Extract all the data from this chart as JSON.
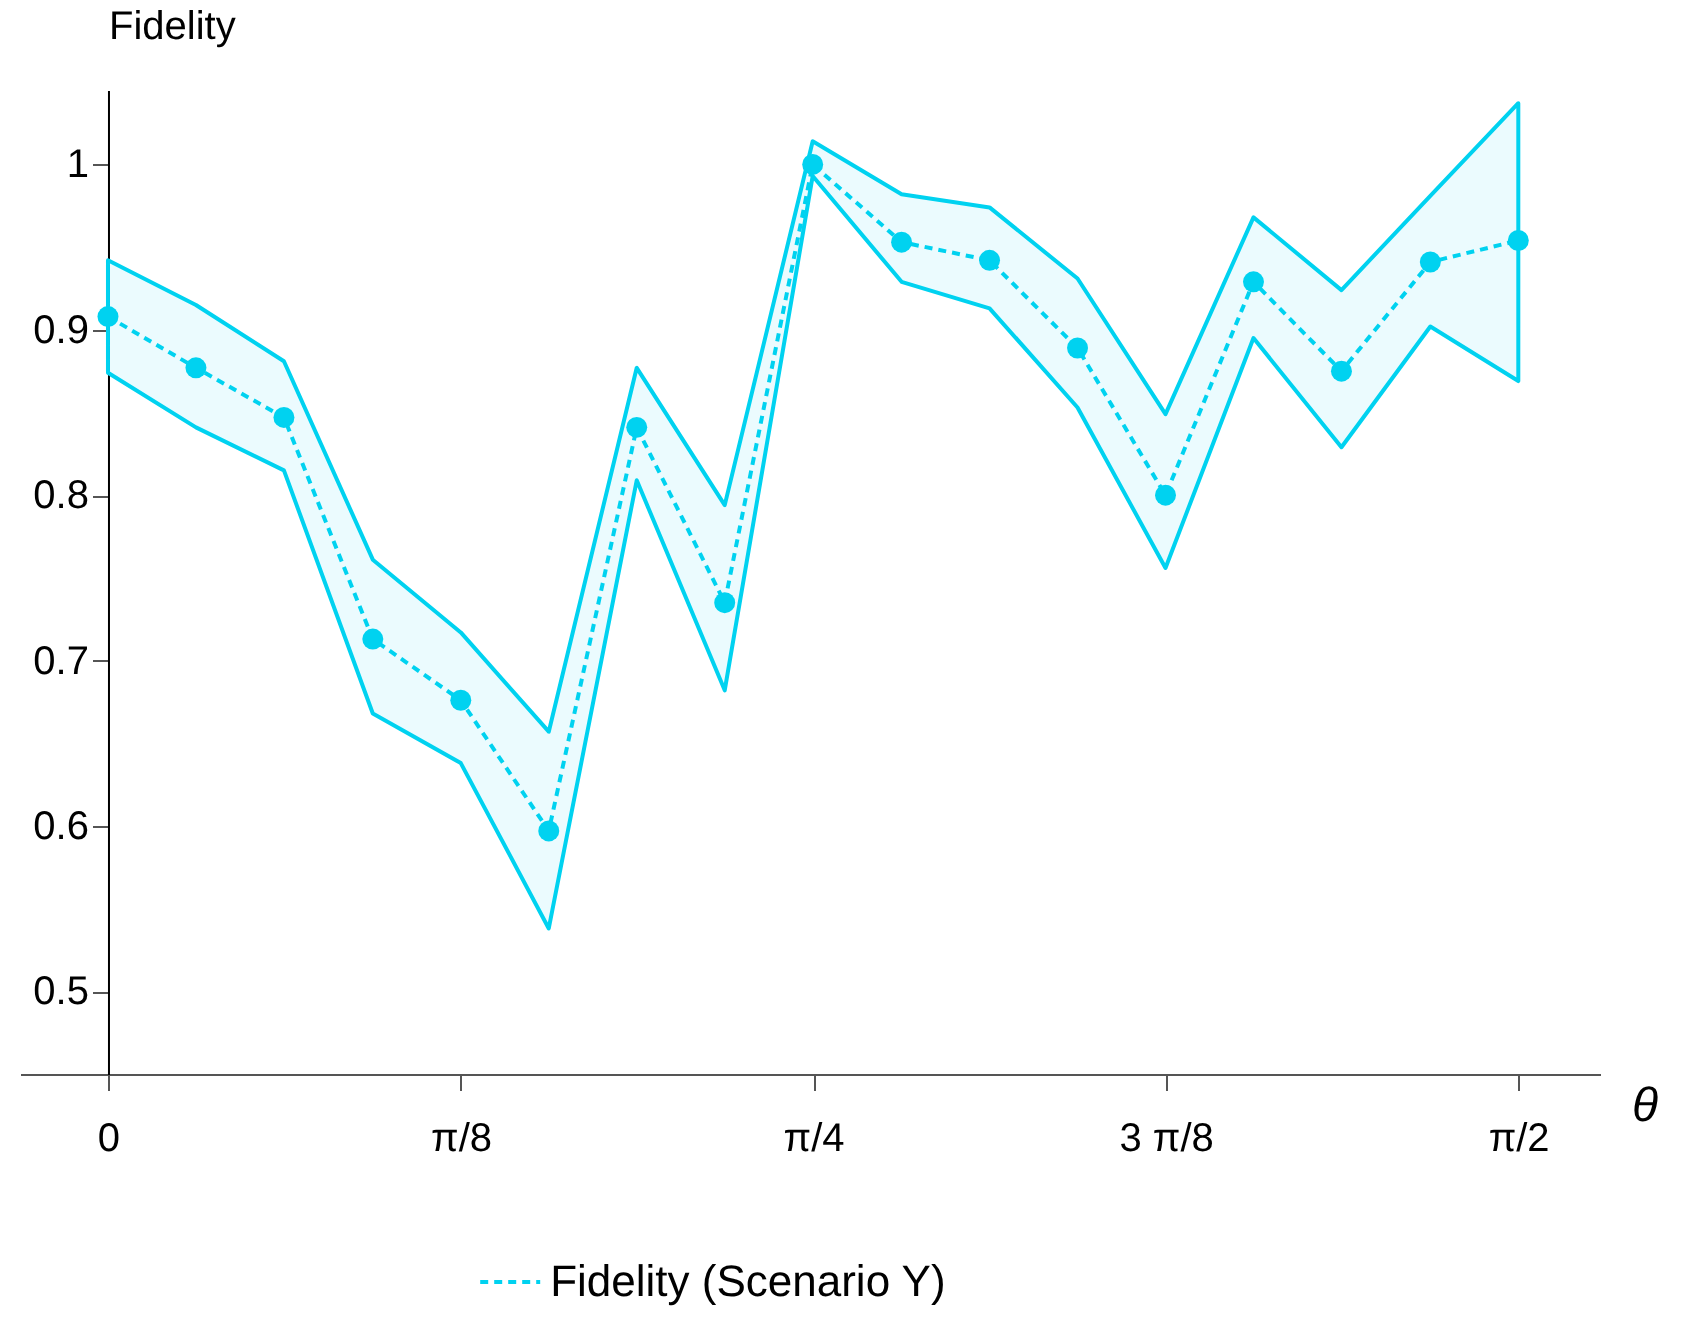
{
  "chart_data": {
    "type": "line",
    "xlabel": "θ",
    "ylabel": "Fidelity",
    "x": [
      0,
      0.098,
      0.196,
      0.295,
      0.393,
      0.491,
      0.589,
      0.687,
      0.785,
      0.884,
      0.982,
      1.08,
      1.178,
      1.276,
      1.374,
      1.473,
      1.571
    ],
    "series": [
      {
        "name": "Fidelity (Scenario Y)",
        "color": "#00d2f0",
        "values": [
          0.908,
          0.877,
          0.847,
          0.713,
          0.676,
          0.597,
          0.841,
          0.735,
          1.0,
          0.953,
          0.942,
          0.889,
          0.8,
          0.929,
          0.875,
          0.941,
          0.954
        ],
        "lower": [
          0.874,
          0.841,
          0.815,
          0.668,
          0.638,
          0.538,
          0.809,
          0.682,
          0.993,
          0.929,
          0.913,
          0.853,
          0.756,
          0.895,
          0.829,
          0.902,
          0.869
        ],
        "upper": [
          0.942,
          0.915,
          0.881,
          0.761,
          0.717,
          0.657,
          0.877,
          0.794,
          1.014,
          0.982,
          0.974,
          0.931,
          0.849,
          0.968,
          0.924,
          0.981,
          1.037
        ]
      }
    ],
    "xlim": [
      -0.098,
      1.662
    ],
    "ylim": [
      0.45,
      1.045
    ],
    "xticks": [
      0,
      {
        "value": 0.3927,
        "label": "π/8"
      },
      {
        "value": 0.7854,
        "label": "π/4"
      },
      {
        "value": 1.1781,
        "label": "3 π/8"
      },
      {
        "value": 1.5708,
        "label": "π/2"
      }
    ],
    "yticks": [
      0.5,
      0.6,
      0.7,
      0.8,
      0.9,
      1
    ],
    "grid": false,
    "legend": "bottom",
    "marker": "circle",
    "line_style": "dashed"
  }
}
